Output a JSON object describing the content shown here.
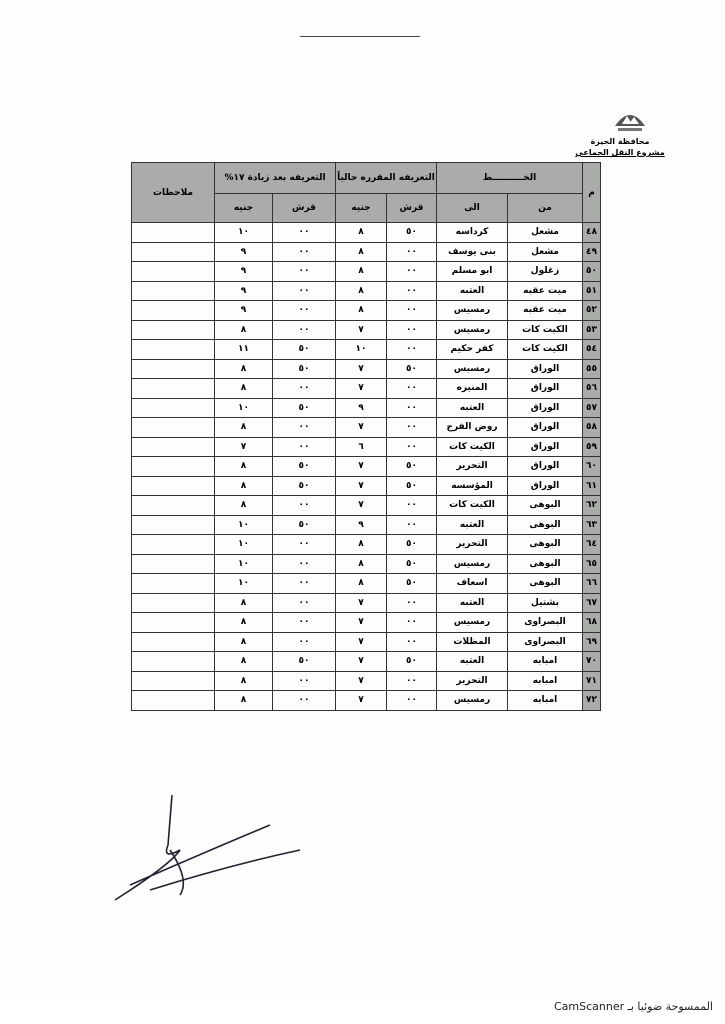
{
  "header": {
    "governorate": "محافظة الجيزة",
    "project": "مشروع النقل الجماعي"
  },
  "table": {
    "col_no": "م",
    "col_line": "الخــــــــــط",
    "col_from": "من",
    "col_to": "الى",
    "col_current": "التعريفه المقرره حالياً",
    "col_increase": "التعريفه بعد زيادة ١٧%",
    "col_piaster": "قرش",
    "col_pound": "جنيه",
    "col_notes": "ملاحظات",
    "rows": [
      [
        "٤٨",
        "مشعل",
        "كرداسه",
        "٥٠",
        "٨",
        "٠٠",
        "١٠"
      ],
      [
        "٤٩",
        "مشعل",
        "بنى يوسف",
        "٠٠",
        "٨",
        "٠٠",
        "٩"
      ],
      [
        "٥٠",
        "زغلول",
        "ابو مسلم",
        "٠٠",
        "٨",
        "٠٠",
        "٩"
      ],
      [
        "٥١",
        "ميت عقبه",
        "العتبه",
        "٠٠",
        "٨",
        "٠٠",
        "٩"
      ],
      [
        "٥٢",
        "ميت عقبه",
        "رمسيس",
        "٠٠",
        "٨",
        "٠٠",
        "٩"
      ],
      [
        "٥٣",
        "الكيت كات",
        "رمسيس",
        "٠٠",
        "٧",
        "٠٠",
        "٨"
      ],
      [
        "٥٤",
        "الكيت كات",
        "كفر حكيم",
        "٠٠",
        "١٠",
        "٥٠",
        "١١"
      ],
      [
        "٥٥",
        "الوراق",
        "رمسيس",
        "٥٠",
        "٧",
        "٥٠",
        "٨"
      ],
      [
        "٥٦",
        "الوراق",
        "المنيره",
        "٠٠",
        "٧",
        "٠٠",
        "٨"
      ],
      [
        "٥٧",
        "الوراق",
        "العتبه",
        "٠٠",
        "٩",
        "٥٠",
        "١٠"
      ],
      [
        "٥٨",
        "الوراق",
        "روض الفرج",
        "٠٠",
        "٧",
        "٠٠",
        "٨"
      ],
      [
        "٥٩",
        "الوراق",
        "الكيت كات",
        "٠٠",
        "٦",
        "٠٠",
        "٧"
      ],
      [
        "٦٠",
        "الوراق",
        "التحرير",
        "٥٠",
        "٧",
        "٥٠",
        "٨"
      ],
      [
        "٦١",
        "الوراق",
        "المؤسسه",
        "٥٠",
        "٧",
        "٥٠",
        "٨"
      ],
      [
        "٦٢",
        "البوهى",
        "الكيت كات",
        "٠٠",
        "٧",
        "٠٠",
        "٨"
      ],
      [
        "٦٣",
        "البوهى",
        "العتبه",
        "٠٠",
        "٩",
        "٥٠",
        "١٠"
      ],
      [
        "٦٤",
        "البوهى",
        "التحرير",
        "٥٠",
        "٨",
        "٠٠",
        "١٠"
      ],
      [
        "٦٥",
        "البوهى",
        "رمسيس",
        "٥٠",
        "٨",
        "٠٠",
        "١٠"
      ],
      [
        "٦٦",
        "البوهى",
        "اسعاف",
        "٥٠",
        "٨",
        "٠٠",
        "١٠"
      ],
      [
        "٦٧",
        "بشتيل",
        "العتبه",
        "٠٠",
        "٧",
        "٠٠",
        "٨"
      ],
      [
        "٦٨",
        "البصراوى",
        "رمسيس",
        "٠٠",
        "٧",
        "٠٠",
        "٨"
      ],
      [
        "٦٩",
        "البصراوى",
        "المظلات",
        "٠٠",
        "٧",
        "٠٠",
        "٨"
      ],
      [
        "٧٠",
        "امبابه",
        "العتبه",
        "٥٠",
        "٧",
        "٥٠",
        "٨"
      ],
      [
        "٧١",
        "امبابه",
        "التحرير",
        "٠٠",
        "٧",
        "٠٠",
        "٨"
      ],
      [
        "٧٢",
        "امبابه",
        "رمسيس",
        "٠٠",
        "٧",
        "٠٠",
        "٨"
      ]
    ]
  },
  "footer": {
    "scanner": "الممسوحة ضوئيا بـ CamScanner"
  }
}
